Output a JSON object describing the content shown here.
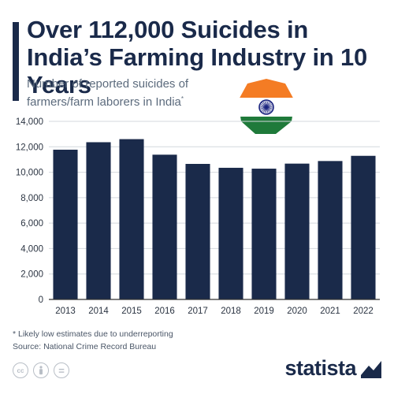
{
  "header": {
    "title": "Over 112,000 Suicides in India’s Farming Industry in 10 Years",
    "subtitle": "Number of reported suicides of farmers/farm laborers in India",
    "subtitle_marker": "*"
  },
  "flag": {
    "icon": "india-flag-icon",
    "colors": {
      "saffron": "#f47c24",
      "white": "#ffffff",
      "green": "#1f7a3a",
      "chakra": "#1a237e"
    }
  },
  "footnote": {
    "note": "* Likely low estimates due to underreporting",
    "source": "Source: National Crime Record Bureau"
  },
  "license": {
    "icons": [
      "creative-commons-icon",
      "attribution-icon",
      "no-derivatives-icon"
    ],
    "cc_text": "cc",
    "nd_text": "="
  },
  "brand": {
    "name": "statista",
    "icon": "statista-logo-icon"
  },
  "colors": {
    "bar": "#1a2a4a",
    "grid": "#d4d8dd",
    "axis_text": "#2b3442",
    "baseline": "#333333"
  },
  "chart_data": {
    "type": "bar",
    "categories": [
      "2013",
      "2014",
      "2015",
      "2016",
      "2017",
      "2018",
      "2019",
      "2020",
      "2021",
      "2022"
    ],
    "values": [
      11772,
      12360,
      12602,
      11379,
      10655,
      10349,
      10281,
      10677,
      10881,
      11290
    ],
    "title": "",
    "xlabel": "",
    "ylabel": "",
    "ylim": [
      0,
      14000
    ],
    "yticks": [
      0,
      2000,
      4000,
      6000,
      8000,
      10000,
      12000,
      14000
    ],
    "ytick_labels": [
      "0",
      "2,000",
      "4,000",
      "6,000",
      "8,000",
      "10,000",
      "12,000",
      "14,000"
    ],
    "grid": true,
    "legend": "none"
  }
}
